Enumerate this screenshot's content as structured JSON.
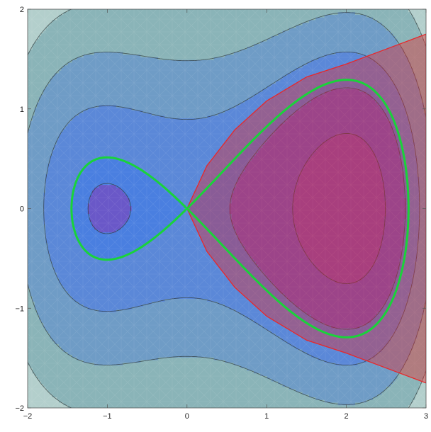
{
  "chart_data": {
    "type": "contour",
    "title": "",
    "xlabel": "",
    "ylabel": "",
    "xlim": [
      -2,
      3
    ],
    "ylim": [
      -2,
      2
    ],
    "x_ticks": [
      -2,
      -1,
      0,
      1,
      2,
      3
    ],
    "y_ticks": [
      -2,
      -1,
      0,
      1,
      2
    ],
    "x_tick_labels": [
      "−2",
      "−1",
      "0",
      "1",
      "2",
      "3"
    ],
    "y_tick_labels": [
      "−2",
      "−1",
      "0",
      "1",
      "2"
    ],
    "grid": false,
    "contour_levels": [
      -1.1,
      -0.2,
      0,
      0.8,
      2.2,
      4.0,
      6.4
    ],
    "contour_colors": [
      "#7e4fb6",
      "#6a58c8",
      "#4a7fe0",
      "#5b88d8",
      "#6f9cc6",
      "#8ab4b8",
      "#b3cfcc",
      "#c9dcdc"
    ],
    "series": [
      {
        "role": "highlighted-level",
        "level": 0,
        "color": "#19d33a",
        "left_lobe_extent_x": [
          -1.45,
          0
        ],
        "left_lobe_extent_y": [
          -0.42,
          0.42
        ],
        "right_lobe_extent_x": [
          0,
          2.78
        ],
        "right_lobe_extent_y": [
          -1.04,
          1.04
        ]
      },
      {
        "role": "shaded-region",
        "color": "#e8272a",
        "fill_opacity": 0.4,
        "boundary_points": [
          [
            0,
            0
          ],
          [
            0.25,
            0.43
          ],
          [
            0.6,
            0.79
          ],
          [
            1.0,
            1.08
          ],
          [
            1.5,
            1.32
          ],
          [
            2.0,
            1.45
          ],
          [
            2.5,
            1.6
          ],
          [
            3.0,
            1.75
          ]
        ],
        "symmetric_about_x_axis": true
      }
    ],
    "minimum_marker": {
      "x": 2,
      "y": 0
    }
  }
}
